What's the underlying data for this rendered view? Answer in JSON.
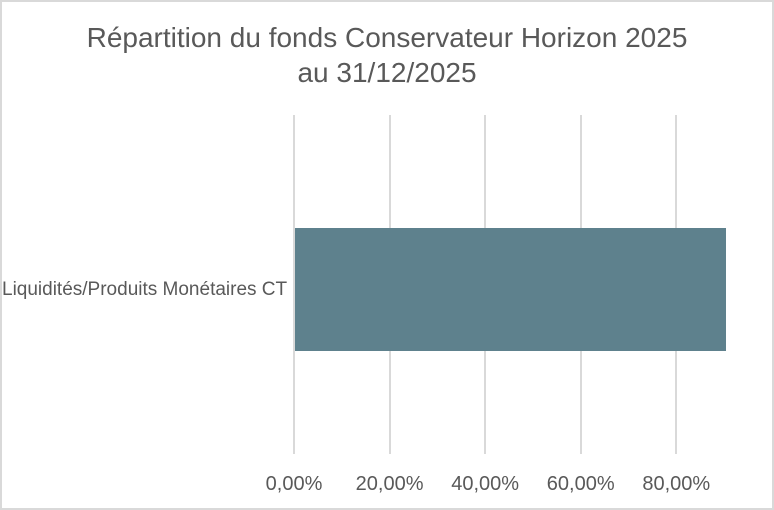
{
  "chart_data": {
    "type": "bar",
    "orientation": "horizontal",
    "title": "Répartition du fonds Conservateur Horizon 2025 au 31/12/2025",
    "title_lines": [
      "Répartition du fonds Conservateur Horizon 2025",
      "au 31/12/2025"
    ],
    "categories": [
      "Liquidités/Produits Monétaires CT"
    ],
    "values": [
      90.2
    ],
    "value_unit": "percent",
    "x_axis": {
      "min": 0,
      "max": 90.2,
      "tick_values": [
        0,
        20,
        40,
        60,
        80
      ],
      "tick_labels": [
        "0,00%",
        "20,00%",
        "40,00%",
        "60,00%",
        "80,00%"
      ]
    },
    "ylabel": "",
    "xlabel": "",
    "grid": true,
    "legend": false,
    "colors": {
      "bar": "#5e818d",
      "gridline": "#d9d9d9",
      "border": "#d9d9d9",
      "text": "#595959",
      "background": "#ffffff"
    }
  }
}
